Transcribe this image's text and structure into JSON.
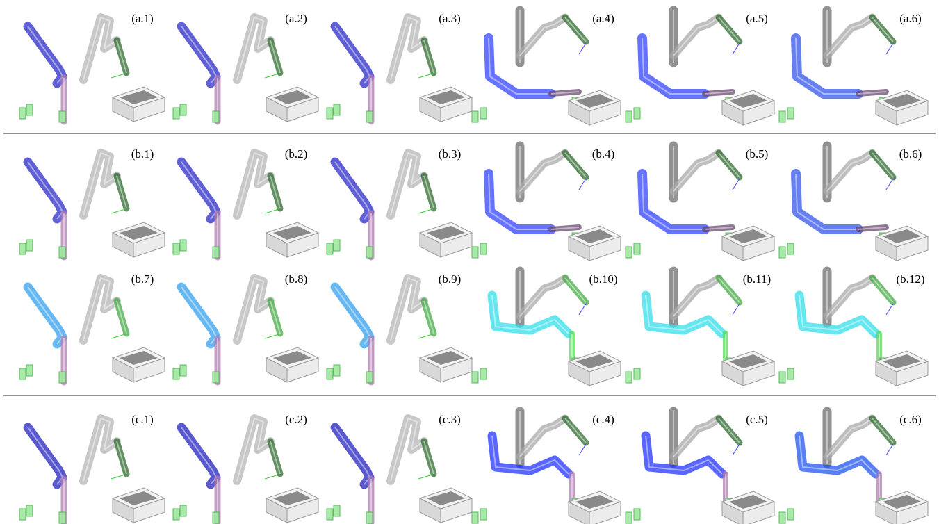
{
  "panels": {
    "a": [
      "(a.1)",
      "(a.2)",
      "(a.3)",
      "(a.4)",
      "(a.5)",
      "(a.6)"
    ],
    "b": [
      "(b.1)",
      "(b.2)",
      "(b.3)",
      "(b.4)",
      "(b.5)",
      "(b.6)",
      "(b.7)",
      "(b.8)",
      "(b.9)",
      "(b.10)",
      "(b.11)",
      "(b.12)"
    ],
    "c": [
      "(c.1)",
      "(c.2)",
      "(c.3)",
      "(c.4)",
      "(c.5)",
      "(c.6)"
    ]
  }
}
